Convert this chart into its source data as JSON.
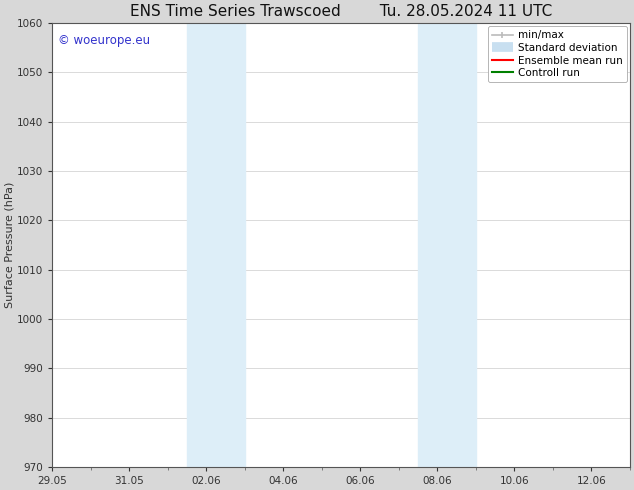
{
  "title_left": "ENS Time Series Trawscoed",
  "title_right": "Tu. 28.05.2024 11 UTC",
  "ylabel": "Surface Pressure (hPa)",
  "ylim": [
    970,
    1060
  ],
  "yticks": [
    970,
    980,
    990,
    1000,
    1010,
    1020,
    1030,
    1040,
    1050,
    1060
  ],
  "xtick_labels": [
    "29.05",
    "31.05",
    "02.06",
    "04.06",
    "06.06",
    "08.06",
    "10.06",
    "12.06"
  ],
  "xtick_positions": [
    0,
    2,
    4,
    6,
    8,
    10,
    12,
    14
  ],
  "xlim": [
    0,
    15
  ],
  "shaded_bands": [
    {
      "x_start": 3.5,
      "x_end": 5.0,
      "color": "#ddeef8"
    },
    {
      "x_start": 9.5,
      "x_end": 11.0,
      "color": "#ddeef8"
    }
  ],
  "watermark_text": "© woeurope.eu",
  "watermark_color": "#3333cc",
  "watermark_fontsize": 8.5,
  "legend_items": [
    {
      "label": "min/max",
      "color": "#bbbbbb",
      "lw": 1.2
    },
    {
      "label": "Standard deviation",
      "color": "#c8dff0",
      "lw": 7
    },
    {
      "label": "Ensemble mean run",
      "color": "#ff0000",
      "lw": 1.5
    },
    {
      "label": "Controll run",
      "color": "#008000",
      "lw": 1.5
    }
  ],
  "bg_color": "#d8d8d8",
  "plot_bg_color": "#ffffff",
  "title_fontsize": 11,
  "ylabel_fontsize": 8,
  "tick_fontsize": 7.5,
  "legend_fontsize": 7.5
}
